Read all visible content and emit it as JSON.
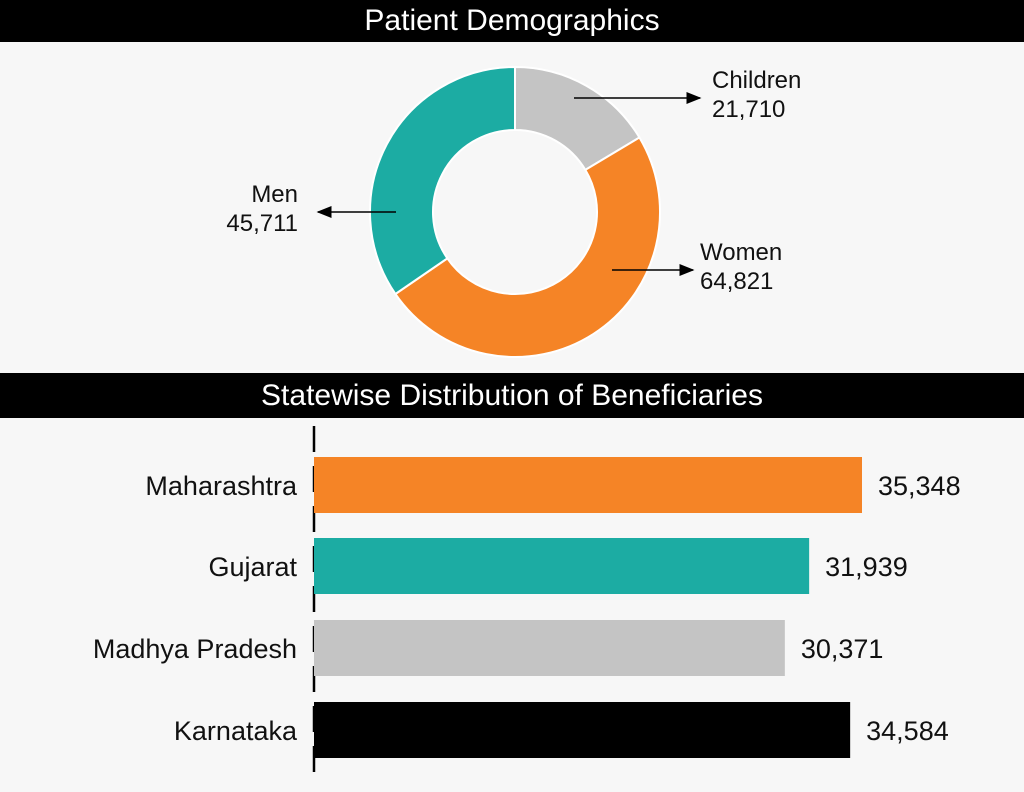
{
  "chart_data": [
    {
      "type": "pie",
      "title": "Patient Demographics",
      "donut": true,
      "slices": [
        {
          "name": "Children",
          "value": 21710,
          "value_label": "21,710",
          "color": "#c4c4c4"
        },
        {
          "name": "Women",
          "value": 64821,
          "value_label": "64,821",
          "color": "#f58426"
        },
        {
          "name": "Men",
          "value": 45711,
          "value_label": "45,711",
          "color": "#1caca3"
        }
      ]
    },
    {
      "type": "bar",
      "orientation": "horizontal",
      "title": "Statewise Distribution of Beneficiaries",
      "categories": [
        "Maharashtra",
        "Gujarat",
        "Madhya Pradesh",
        "Karnataka"
      ],
      "values": [
        35348,
        31939,
        30371,
        34584
      ],
      "value_labels": [
        "35,348",
        "31,939",
        "30,371",
        "34,584"
      ],
      "colors": [
        "#f58426",
        "#1caca3",
        "#c4c4c4",
        "#000000"
      ],
      "xlim": [
        0,
        35348
      ]
    }
  ]
}
